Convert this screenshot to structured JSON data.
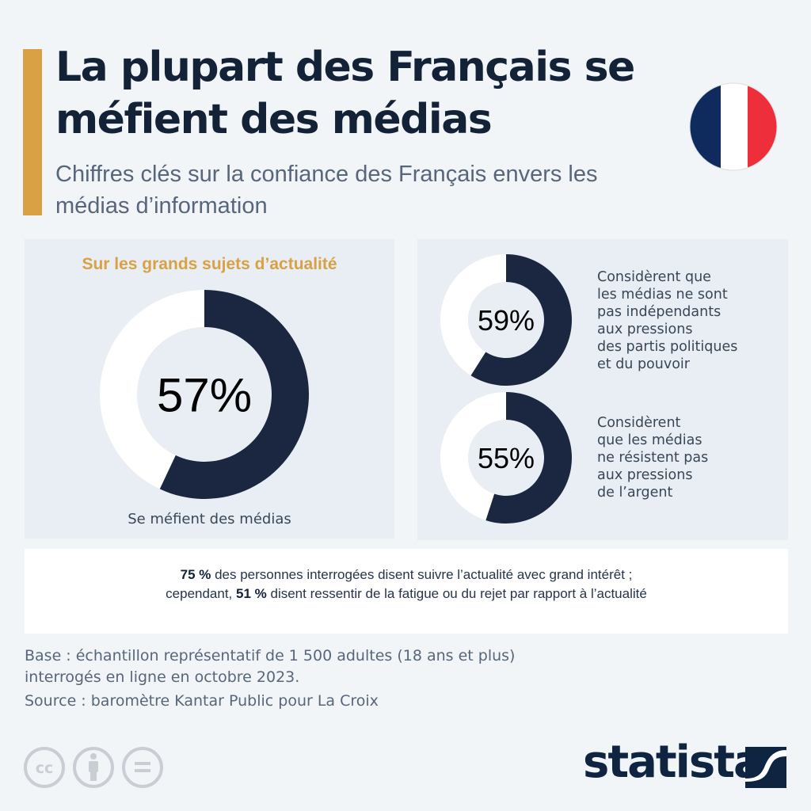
{
  "header": {
    "title": "La plupart des Français se méfient des médias",
    "subtitle": "Chiffres clés sur la confiance des Français envers les médias d’information",
    "flag_icon": "france-flag-icon",
    "accent_color": "#d9a144"
  },
  "colors": {
    "donut_filled": "#1b2640",
    "donut_empty": "#ffffff",
    "panel_bg": "#e8eef4",
    "flag_blue": "#0f2a5c",
    "flag_white": "#ffffff",
    "flag_red": "#ee2e3b"
  },
  "chart_data": [
    {
      "type": "pie",
      "variant": "donut",
      "title": "Sur les grands sujets d’actualité",
      "label": "57%",
      "value": 57,
      "max": 100,
      "caption": "Se méfient des médias"
    },
    {
      "type": "pie",
      "variant": "donut",
      "label": "59%",
      "value": 59,
      "max": 100,
      "caption": "Considèrent que\nles médias ne sont\npas indépendants\naux pressions\ndes partis politiques\net du pouvoir"
    },
    {
      "type": "pie",
      "variant": "donut",
      "label": "55%",
      "value": 55,
      "max": 100,
      "caption": "Considèrent\nque les médias\nne résistent pas\naux pressions\nde l’argent"
    }
  ],
  "note": {
    "line1_bold": "75 %",
    "line1_rest": " des personnes interrogées disent suivre l’actualité avec grand intérêt ;",
    "line2_start": "cependant, ",
    "line2_bold": "51 %",
    "line2_rest": " disent ressentir de la fatigue ou du rejet par rapport à l’actualité"
  },
  "source": {
    "base_line1": "Base : échantillon représentatif de 1 500 adultes (18 ans et plus)",
    "base_line2": "interrogés en ligne en octobre 2023.",
    "source_line": "Source : baromètre Kantar Public pour La Croix"
  },
  "footer": {
    "license_icons": [
      "cc-icon",
      "by-attribution-icon",
      "nd-no-derivatives-icon"
    ],
    "brand": "statista"
  }
}
